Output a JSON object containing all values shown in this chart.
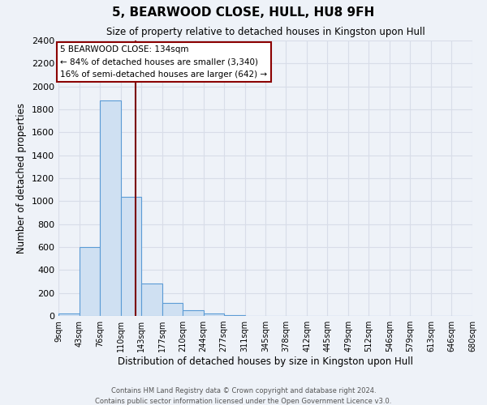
{
  "title": "5, BEARWOOD CLOSE, HULL, HU8 9FH",
  "subtitle": "Size of property relative to detached houses in Kingston upon Hull",
  "xlabel": "Distribution of detached houses by size in Kingston upon Hull",
  "ylabel": "Number of detached properties",
  "bin_edges": [
    9,
    43,
    76,
    110,
    143,
    177,
    210,
    244,
    277,
    311,
    345,
    378,
    412,
    445,
    479,
    512,
    546,
    579,
    613,
    646,
    680
  ],
  "bar_heights": [
    20,
    600,
    1880,
    1035,
    285,
    110,
    50,
    20,
    5,
    0,
    0,
    0,
    0,
    0,
    0,
    0,
    0,
    0,
    0,
    0
  ],
  "bar_color": "#cfe0f2",
  "bar_edge_color": "#5b9bd5",
  "property_size": 134,
  "vline_color": "#7b0000",
  "annotation_title": "5 BEARWOOD CLOSE: 134sqm",
  "annotation_line1": "← 84% of detached houses are smaller (3,340)",
  "annotation_line2": "16% of semi-detached houses are larger (642) →",
  "annotation_box_color": "#ffffff",
  "annotation_box_edge": "#8b0000",
  "ylim": [
    0,
    2400
  ],
  "yticks": [
    0,
    200,
    400,
    600,
    800,
    1000,
    1200,
    1400,
    1600,
    1800,
    2000,
    2200,
    2400
  ],
  "background_color": "#eef2f8",
  "grid_color": "#d8dde8",
  "footer1": "Contains HM Land Registry data © Crown copyright and database right 2024.",
  "footer2": "Contains public sector information licensed under the Open Government Licence v3.0."
}
